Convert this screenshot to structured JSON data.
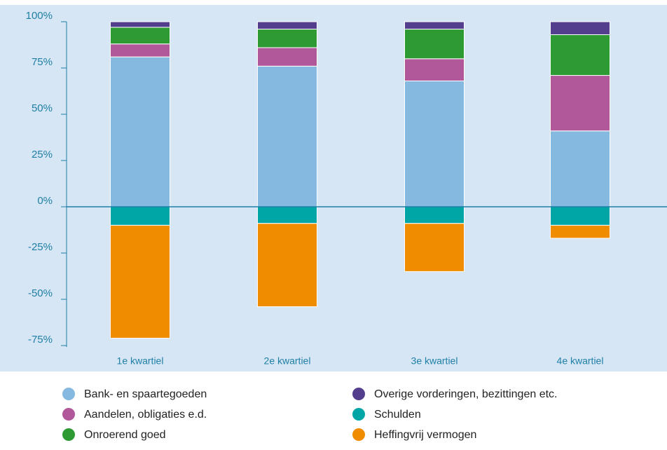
{
  "chart_data": {
    "type": "stacked_bar",
    "categories": [
      "1e kwartiel",
      "2e kwartiel",
      "3e kwartiel",
      "4e kwartiel"
    ],
    "series": [
      {
        "name": "Bank- en spaartegoeden",
        "color": "#85b9e0",
        "values": [
          81,
          76,
          68,
          41
        ]
      },
      {
        "name": "Aandelen, obligaties e.d.",
        "color": "#b0589a",
        "values": [
          7,
          10,
          12,
          30
        ]
      },
      {
        "name": "Onroerend goed",
        "color": "#2e9a34",
        "values": [
          9,
          10,
          16,
          22
        ]
      },
      {
        "name": "Overige vorderingen, bezittingen etc.",
        "color": "#533e8e",
        "values": [
          3,
          4,
          4,
          7
        ]
      },
      {
        "name": "Schulden",
        "color": "#00a6a6",
        "values": [
          -10,
          -9,
          -9,
          -10
        ]
      },
      {
        "name": "Heffingvrij vermogen",
        "color": "#f08c00",
        "values": [
          -61,
          -45,
          -26,
          -7
        ]
      }
    ],
    "ylim": [
      -75,
      100
    ],
    "yticks": [
      {
        "value": -75,
        "label": "-75%"
      },
      {
        "value": -50,
        "label": "-50%"
      },
      {
        "value": -25,
        "label": "-25%"
      },
      {
        "value": 0,
        "label": "0%"
      },
      {
        "value": 25,
        "label": "25%"
      },
      {
        "value": 50,
        "label": "50%"
      },
      {
        "value": 75,
        "label": "75%"
      },
      {
        "value": 100,
        "label": "100%"
      }
    ]
  }
}
